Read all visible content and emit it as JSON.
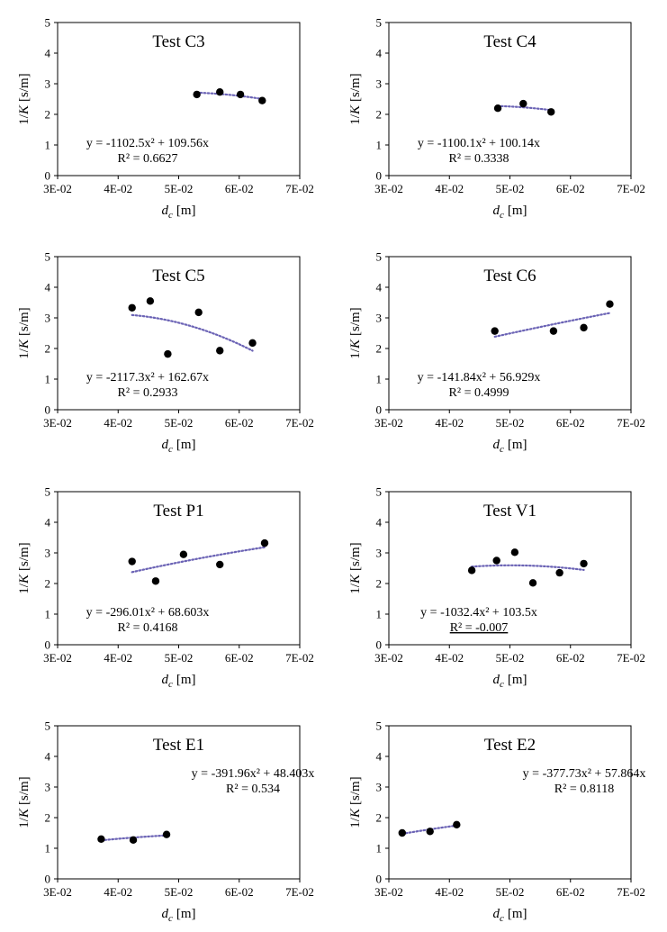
{
  "figure": {
    "xlabel_base": "d",
    "xlabel_sub": "c",
    "xlabel_unit": "[m]",
    "ylabel_prefix": "1/",
    "ylabel_var": "K",
    "ylabel_unit": "[s/m]"
  },
  "chart_data": [
    {
      "type": "scatter",
      "title": "Test C3",
      "xlim": [
        0.03,
        0.07
      ],
      "ylim": [
        0,
        5
      ],
      "xticks": [
        "3E-02",
        "4E-02",
        "5E-02",
        "6E-02",
        "7E-02"
      ],
      "yticks": [
        "0",
        "1",
        "2",
        "3",
        "4",
        "5"
      ],
      "points": [
        [
          0.053,
          2.65
        ],
        [
          0.0568,
          2.73
        ],
        [
          0.0602,
          2.65
        ],
        [
          0.0638,
          2.45
        ]
      ],
      "fit": {
        "a": -1102.5,
        "b": 109.56,
        "xrange": [
          0.053,
          0.0638
        ]
      },
      "equation": "y = -1102.5x² + 109.56x",
      "r2_text": "R² = 0.6627",
      "r2_underline": false,
      "eq_anchor": "left-low"
    },
    {
      "type": "scatter",
      "title": "Test C4",
      "xlim": [
        0.03,
        0.07
      ],
      "ylim": [
        0,
        5
      ],
      "xticks": [
        "3E-02",
        "4E-02",
        "5E-02",
        "6E-02",
        "7E-02"
      ],
      "yticks": [
        "0",
        "1",
        "2",
        "3",
        "4",
        "5"
      ],
      "points": [
        [
          0.048,
          2.2
        ],
        [
          0.0522,
          2.35
        ],
        [
          0.0568,
          2.08
        ]
      ],
      "fit": {
        "a": -1100.1,
        "b": 100.14,
        "xrange": [
          0.048,
          0.0568
        ]
      },
      "equation": "y = -1100.1x² + 100.14x",
      "r2_text": "R² = 0.3338",
      "r2_underline": false,
      "eq_anchor": "left-low"
    },
    {
      "type": "scatter",
      "title": "Test C5",
      "xlim": [
        0.03,
        0.07
      ],
      "ylim": [
        0,
        5
      ],
      "xticks": [
        "3E-02",
        "4E-02",
        "5E-02",
        "6E-02",
        "7E-02"
      ],
      "yticks": [
        "0",
        "1",
        "2",
        "3",
        "4",
        "5"
      ],
      "points": [
        [
          0.0423,
          3.33
        ],
        [
          0.0453,
          3.55
        ],
        [
          0.0482,
          1.82
        ],
        [
          0.0533,
          3.18
        ],
        [
          0.0568,
          1.93
        ],
        [
          0.0622,
          2.18
        ]
      ],
      "fit": {
        "a": -2117.3,
        "b": 162.67,
        "xrange": [
          0.0423,
          0.0622
        ]
      },
      "equation": "y = -2117.3x² + 162.67x",
      "r2_text": "R² = 0.2933",
      "r2_underline": false,
      "eq_anchor": "left-low"
    },
    {
      "type": "scatter",
      "title": "Test C6",
      "xlim": [
        0.03,
        0.07
      ],
      "ylim": [
        0,
        5
      ],
      "xticks": [
        "3E-02",
        "4E-02",
        "5E-02",
        "6E-02",
        "7E-02"
      ],
      "yticks": [
        "0",
        "1",
        "2",
        "3",
        "4",
        "5"
      ],
      "points": [
        [
          0.0475,
          2.57
        ],
        [
          0.0572,
          2.57
        ],
        [
          0.0622,
          2.68
        ],
        [
          0.0665,
          3.45
        ]
      ],
      "fit": {
        "a": -141.84,
        "b": 56.929,
        "xrange": [
          0.0475,
          0.0665
        ]
      },
      "equation": "y = -141.84x² + 56.929x",
      "r2_text": "R² = 0.4999",
      "r2_underline": false,
      "eq_anchor": "left-low"
    },
    {
      "type": "scatter",
      "title": "Test P1",
      "xlim": [
        0.03,
        0.07
      ],
      "ylim": [
        0,
        5
      ],
      "xticks": [
        "3E-02",
        "4E-02",
        "5E-02",
        "6E-02",
        "7E-02"
      ],
      "yticks": [
        "0",
        "1",
        "2",
        "3",
        "4",
        "5"
      ],
      "points": [
        [
          0.0423,
          2.72
        ],
        [
          0.0462,
          2.08
        ],
        [
          0.0508,
          2.95
        ],
        [
          0.0568,
          2.62
        ],
        [
          0.0642,
          3.32
        ]
      ],
      "fit": {
        "a": -296.01,
        "b": 68.603,
        "xrange": [
          0.0423,
          0.0642
        ]
      },
      "equation": "y = -296.01x² + 68.603x",
      "r2_text": "R² = 0.4168",
      "r2_underline": false,
      "eq_anchor": "left-low"
    },
    {
      "type": "scatter",
      "title": "Test V1",
      "xlim": [
        0.03,
        0.07
      ],
      "ylim": [
        0,
        5
      ],
      "xticks": [
        "3E-02",
        "4E-02",
        "5E-02",
        "6E-02",
        "7E-02"
      ],
      "yticks": [
        "0",
        "1",
        "2",
        "3",
        "4",
        "5"
      ],
      "points": [
        [
          0.0437,
          2.43
        ],
        [
          0.0478,
          2.75
        ],
        [
          0.0508,
          3.02
        ],
        [
          0.0538,
          2.02
        ],
        [
          0.0582,
          2.35
        ],
        [
          0.0622,
          2.65
        ]
      ],
      "fit": {
        "a": -1032.4,
        "b": 103.5,
        "xrange": [
          0.0437,
          0.0622
        ]
      },
      "equation": "y = -1032.4x² + 103.5x",
      "r2_text": "R² = -0.007",
      "r2_underline": true,
      "eq_anchor": "left-low"
    },
    {
      "type": "scatter",
      "title": "Test E1",
      "xlim": [
        0.03,
        0.07
      ],
      "ylim": [
        0,
        5
      ],
      "xticks": [
        "3E-02",
        "4E-02",
        "5E-02",
        "6E-02",
        "7E-02"
      ],
      "yticks": [
        "0",
        "1",
        "2",
        "3",
        "4",
        "5"
      ],
      "points": [
        [
          0.0372,
          1.3
        ],
        [
          0.0425,
          1.27
        ],
        [
          0.048,
          1.45
        ]
      ],
      "fit": {
        "a": -391.96,
        "b": 48.403,
        "xrange": [
          0.0372,
          0.048
        ]
      },
      "equation": "y = -391.96x² + 48.403x",
      "r2_text": "R² = 0.534",
      "r2_underline": false,
      "eq_anchor": "right-high"
    },
    {
      "type": "scatter",
      "title": "Test E2",
      "xlim": [
        0.03,
        0.07
      ],
      "ylim": [
        0,
        5
      ],
      "xticks": [
        "3E-02",
        "4E-02",
        "5E-02",
        "6E-02",
        "7E-02"
      ],
      "yticks": [
        "0",
        "1",
        "2",
        "3",
        "4",
        "5"
      ],
      "points": [
        [
          0.0322,
          1.5
        ],
        [
          0.0368,
          1.55
        ],
        [
          0.0412,
          1.77
        ]
      ],
      "fit": {
        "a": -377.73,
        "b": 57.864,
        "xrange": [
          0.0322,
          0.0412
        ]
      },
      "equation": "y = -377.73x² + 57.864x",
      "r2_text": "R² = 0.8118",
      "r2_underline": false,
      "eq_anchor": "right-high"
    }
  ],
  "colors": {
    "trendline": "#6b63b5",
    "marker": "#000000",
    "axis": "#000000"
  }
}
